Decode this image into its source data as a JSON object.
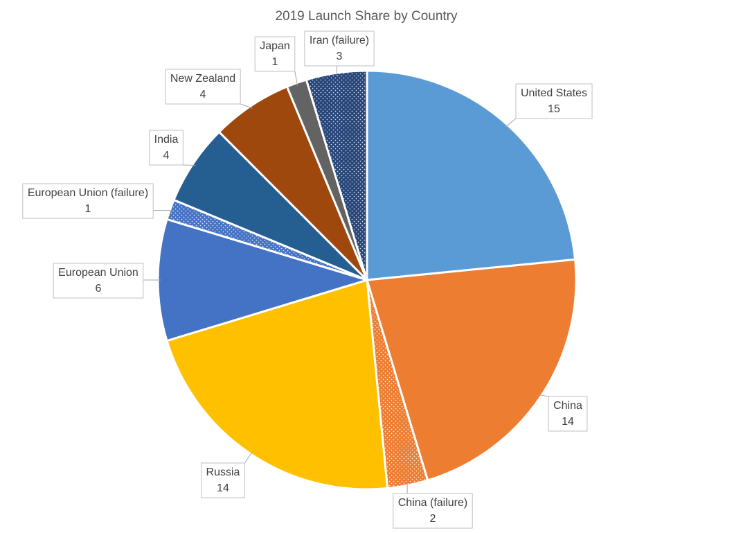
{
  "chart_data": {
    "type": "pie",
    "title": "2019 Launch Share by Country",
    "categories": [
      "United States",
      "China",
      "China (failure)",
      "Russia",
      "European Union",
      "European Union (failure)",
      "India",
      "New Zealand",
      "Japan",
      "Iran (failure)"
    ],
    "values": [
      15,
      14,
      2,
      14,
      6,
      1,
      4,
      4,
      1,
      3
    ],
    "colors": [
      "#5b9bd5",
      "#ed7d31",
      "#ed7d31",
      "#ffc000",
      "#4472c4",
      "#4472c4",
      "#255e91",
      "#9e480e",
      "#636363",
      "#264478"
    ],
    "patterns": [
      "solid",
      "solid",
      "dots",
      "solid",
      "solid",
      "dots",
      "solid",
      "solid",
      "solid",
      "dots"
    ]
  }
}
